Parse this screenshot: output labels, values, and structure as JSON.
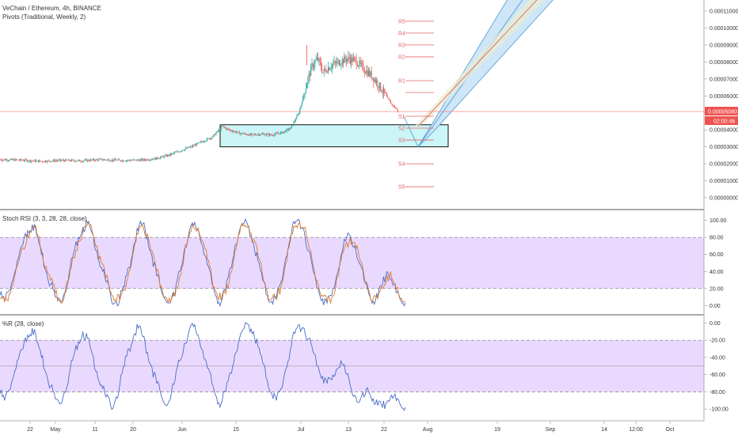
{
  "chart_data": [
    {
      "type": "candlestick",
      "title": "VeChain / Ethereum, 4h, BINANCE",
      "subtitle": "Pivots (Traditional, Weekly, 2)",
      "y_axis_labels": [
        "0.00011000",
        "0.00010000",
        "0.00009000",
        "0.00008000",
        "0.00007000",
        "0.00006000",
        "0.00005000",
        "0.00004000",
        "0.00003000",
        "0.00002000",
        "0.00001000",
        "0.00000000"
      ],
      "ylim": [
        0.0,
        0.00011
      ],
      "current_price_label": "0.00005080",
      "countdown_label": "02:00:46",
      "current_price": 5.08e-05,
      "pivot_levels": [
        {
          "name": "R5",
          "value": 0.000104
        },
        {
          "name": "R4",
          "value": 9.7e-05
        },
        {
          "name": "R3",
          "value": 9e-05
        },
        {
          "name": "R2",
          "value": 8.3e-05
        },
        {
          "name": "R1",
          "value": 6.9e-05
        },
        {
          "name": "P",
          "value": 6.2e-05
        },
        {
          "name": "S1",
          "value": 4.8e-05
        },
        {
          "name": "S2",
          "value": 4.1e-05
        },
        {
          "name": "S3",
          "value": 3.4e-05
        },
        {
          "name": "S4",
          "value": 2e-05
        },
        {
          "name": "S5",
          "value": 6.5e-06
        }
      ],
      "support_zone": [
        3e-05,
        4.3e-05
      ],
      "price_path": [
        {
          "t": 0,
          "v": 2.25e-05
        },
        {
          "t": 15,
          "v": 2.22e-05
        },
        {
          "t": 30,
          "v": 2.15e-05
        },
        {
          "t": 45,
          "v": 2.2e-05
        },
        {
          "t": 60,
          "v": 2.18e-05
        },
        {
          "t": 75,
          "v": 2.25e-05
        },
        {
          "t": 90,
          "v": 2.2e-05
        },
        {
          "t": 105,
          "v": 2.22e-05
        },
        {
          "t": 115,
          "v": 2.3e-05
        },
        {
          "t": 125,
          "v": 2.5e-05
        },
        {
          "t": 135,
          "v": 2.8e-05
        },
        {
          "t": 142,
          "v": 3e-05
        },
        {
          "t": 150,
          "v": 3.3e-05
        },
        {
          "t": 158,
          "v": 3.6e-05
        },
        {
          "t": 165,
          "v": 4.2e-05
        },
        {
          "t": 170,
          "v": 4e-05
        },
        {
          "t": 178,
          "v": 3.8e-05
        },
        {
          "t": 186,
          "v": 3.7e-05
        },
        {
          "t": 194,
          "v": 3.75e-05
        },
        {
          "t": 202,
          "v": 3.7e-05
        },
        {
          "t": 210,
          "v": 3.85e-05
        },
        {
          "t": 216,
          "v": 4.1e-05
        },
        {
          "t": 222,
          "v": 5e-05
        },
        {
          "t": 228,
          "v": 6.8e-05
        },
        {
          "t": 232,
          "v": 7.8e-05
        },
        {
          "t": 236,
          "v": 8.2e-05
        },
        {
          "t": 240,
          "v": 7.4e-05
        },
        {
          "t": 246,
          "v": 7.8e-05
        },
        {
          "t": 252,
          "v": 8e-05
        },
        {
          "t": 258,
          "v": 8.2e-05
        },
        {
          "t": 264,
          "v": 8.1e-05
        },
        {
          "t": 270,
          "v": 7.6e-05
        },
        {
          "t": 276,
          "v": 7.2e-05
        },
        {
          "t": 280,
          "v": 6.8e-05
        },
        {
          "t": 285,
          "v": 6.2e-05
        },
        {
          "t": 290,
          "v": 5.6e-05
        },
        {
          "t": 296,
          "v": 5.08e-05
        }
      ],
      "x_tick_labels": [
        "22",
        "May",
        "11",
        "20",
        "Jun",
        "15",
        "Jul",
        "13",
        "22",
        "Aug",
        "19",
        "Sep",
        "14",
        "12:00",
        "Oct"
      ]
    },
    {
      "type": "line",
      "title": "Stoch RSI (3, 3, 28, 28, close)",
      "y_axis_labels": [
        "100.00",
        "80.00",
        "60.00",
        "40.00",
        "20.00",
        "0.00"
      ],
      "ylim": [
        -8,
        108
      ],
      "band": [
        20,
        80
      ],
      "series": [
        {
          "values": [
            12,
            5,
            18,
            35,
            55,
            72,
            88,
            95,
            82,
            60,
            40,
            25,
            10,
            5,
            15,
            38,
            62,
            80,
            92,
            97,
            85,
            65,
            45,
            28,
            12,
            4,
            8,
            22,
            45,
            70,
            88,
            96,
            80,
            58,
            35,
            18,
            6,
            3,
            14,
            40,
            66,
            85,
            94,
            90,
            70,
            48,
            26,
            10,
            4,
            18,
            44,
            70,
            88,
            97,
            92,
            74,
            52,
            30,
            12,
            5,
            9,
            28,
            55,
            80,
            96,
            100,
            88,
            64,
            40,
            20,
            8,
            3,
            12,
            34,
            58,
            76,
            82,
            70,
            50,
            30,
            14,
            5,
            10,
            24,
            40,
            30,
            15,
            6,
            3
          ]
        },
        {
          "values": [
            8,
            4,
            14,
            30,
            50,
            68,
            84,
            92,
            85,
            66,
            46,
            30,
            15,
            8,
            12,
            32,
            56,
            76,
            88,
            95,
            88,
            70,
            50,
            33,
            17,
            7,
            6,
            18,
            40,
            64,
            84,
            94,
            84,
            64,
            41,
            23,
            10,
            4,
            11,
            35,
            60,
            80,
            92,
            91,
            75,
            54,
            32,
            15,
            6,
            14,
            38,
            64,
            84,
            95,
            93,
            78,
            58,
            36,
            17,
            8,
            7,
            23,
            49,
            74,
            92,
            98,
            91,
            70,
            47,
            26,
            12,
            5,
            9,
            29,
            52,
            71,
            80,
            74,
            56,
            36,
            19,
            8,
            8,
            20,
            36,
            33,
            19,
            9,
            5
          ]
        }
      ]
    },
    {
      "type": "line",
      "title": "%R (28, close)",
      "y_axis_labels": [
        "0.00",
        "-20.00",
        "-40.00",
        "-60.00",
        "-80.00",
        "-100.00"
      ],
      "ylim": [
        -110,
        5
      ],
      "band": [
        -80,
        -20
      ],
      "midline": -50,
      "series": [
        {
          "values": [
            -82,
            -90,
            -78,
            -60,
            -42,
            -30,
            -14,
            -6,
            -22,
            -40,
            -58,
            -74,
            -88,
            -94,
            -80,
            -60,
            -38,
            -22,
            -10,
            -18,
            -36,
            -56,
            -72,
            -86,
            -96,
            -90,
            -72,
            -50,
            -30,
            -14,
            -6,
            -16,
            -34,
            -52,
            -70,
            -84,
            -96,
            -88,
            -66,
            -44,
            -24,
            -10,
            -4,
            -14,
            -32,
            -52,
            -70,
            -86,
            -94,
            -80,
            -58,
            -36,
            -18,
            -6,
            -2,
            -10,
            -28,
            -46,
            -66,
            -82,
            -90,
            -76,
            -54,
            -32,
            -12,
            -2,
            -6,
            -18,
            -34,
            -50,
            -62,
            -70,
            -66,
            -54,
            -44,
            -58,
            -72,
            -84,
            -92,
            -86,
            -80,
            -88,
            -96,
            -98,
            -92,
            -84,
            -90,
            -96,
            -98
          ]
        }
      ]
    }
  ]
}
